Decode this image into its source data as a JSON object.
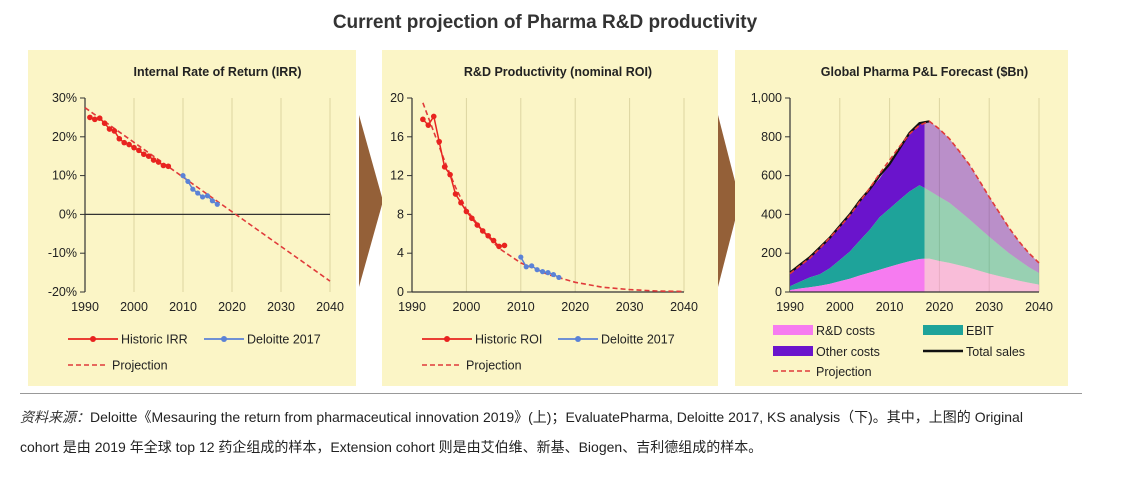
{
  "title": "Current projection of Pharma R&D productivity",
  "colors": {
    "panel_bg": "#fbf5c6",
    "historic": "#e8231f",
    "deloitte": "#5b82d6",
    "projection": "#e03a3a",
    "rd": "#f67bf0",
    "ebit": "#1ea39a",
    "other": "#6a14cc",
    "total": "#111111",
    "arrow": "#946038"
  },
  "chart_data": [
    {
      "type": "line",
      "title": "Internal Rate of Return (IRR)",
      "xlim": [
        1990,
        2040
      ],
      "ylim": [
        -20,
        30
      ],
      "x_ticks": [
        "1990",
        "2000",
        "2010",
        "2020",
        "2030",
        "2040"
      ],
      "y_ticks": [
        "30%",
        "20%",
        "10%",
        "0%",
        "-10%",
        "-20%"
      ],
      "series": [
        {
          "name": "Historic IRR",
          "x": [
            1991,
            1992,
            1993,
            1994,
            1995,
            1996,
            1997,
            1998,
            1999,
            2000,
            2001,
            2002,
            2003,
            2004,
            2005,
            2006,
            2007
          ],
          "y": [
            25,
            24.5,
            24.8,
            23.5,
            22,
            21.5,
            19.5,
            18.5,
            18,
            17.2,
            16.5,
            15.5,
            15,
            14,
            13.5,
            12.6,
            12.4
          ]
        },
        {
          "name": "Deloitte 2017",
          "x": [
            2010,
            2011,
            2012,
            2013,
            2014,
            2015,
            2016,
            2017
          ],
          "y": [
            10,
            8.5,
            6.5,
            5.5,
            4.5,
            4.8,
            3.5,
            2.6
          ]
        },
        {
          "name": "Projection",
          "x": [
            1990,
            2040
          ],
          "y": [
            27.5,
            -17.2
          ]
        }
      ]
    },
    {
      "type": "line",
      "title": "R&D Productivity (nominal ROI)",
      "xlim": [
        1990,
        2040
      ],
      "ylim": [
        0,
        20
      ],
      "x_ticks": [
        "1990",
        "2000",
        "2010",
        "2020",
        "2030",
        "2040"
      ],
      "y_ticks": [
        "20",
        "16",
        "12",
        "8",
        "4",
        "0"
      ],
      "series": [
        {
          "name": "Historic ROI",
          "x": [
            1992,
            1993,
            1994,
            1995,
            1996,
            1997,
            1998,
            1999,
            2000,
            2001,
            2002,
            2003,
            2004,
            2005,
            2006,
            2007
          ],
          "y": [
            17.8,
            17.2,
            18.1,
            15.5,
            12.9,
            12.1,
            10.1,
            9.2,
            8.3,
            7.6,
            6.9,
            6.3,
            5.8,
            5.3,
            4.7,
            4.8
          ]
        },
        {
          "name": "Deloitte 2017",
          "x": [
            2010,
            2011,
            2012,
            2013,
            2014,
            2015,
            2016,
            2017
          ],
          "y": [
            3.6,
            2.6,
            2.7,
            2.3,
            2.1,
            2.0,
            1.8,
            1.5
          ]
        },
        {
          "name": "Projection",
          "x": [
            1992,
            1994,
            1996,
            1998,
            2000,
            2003,
            2006,
            2010,
            2015,
            2020,
            2025,
            2030,
            2035,
            2040
          ],
          "y": [
            19.5,
            16.5,
            13.5,
            10.8,
            8.5,
            6.3,
            4.5,
            3.0,
            1.8,
            1.0,
            0.5,
            0.25,
            0.1,
            0.05
          ]
        }
      ]
    },
    {
      "type": "area",
      "title": "Global Pharma P&L Forecast ($Bn)",
      "xlim": [
        1990,
        2040
      ],
      "ylim": [
        0,
        1000
      ],
      "x_ticks": [
        "1990",
        "2000",
        "2010",
        "2020",
        "2030",
        "2040"
      ],
      "y_ticks": [
        "1,000",
        "800",
        "600",
        "400",
        "200",
        "0"
      ],
      "x": [
        1990,
        1992,
        1994,
        1996,
        1998,
        2000,
        2002,
        2004,
        2006,
        2008,
        2010,
        2012,
        2014,
        2016,
        2018,
        2020,
        2022,
        2024,
        2026,
        2028,
        2030,
        2032,
        2034,
        2036,
        2038,
        2040
      ],
      "series": [
        {
          "name": "R&D costs",
          "values": [
            10,
            18,
            25,
            32,
            42,
            55,
            68,
            85,
            100,
            115,
            130,
            145,
            158,
            170,
            172,
            160,
            150,
            138,
            125,
            110,
            95,
            82,
            70,
            58,
            48,
            38
          ]
        },
        {
          "name": "EBIT",
          "values": [
            20,
            35,
            50,
            60,
            80,
            110,
            140,
            180,
            220,
            270,
            300,
            330,
            360,
            380,
            350,
            330,
            310,
            280,
            250,
            220,
            190,
            160,
            130,
            105,
            80,
            60
          ]
        },
        {
          "name": "Other costs",
          "values": [
            70,
            90,
            110,
            140,
            160,
            175,
            190,
            205,
            210,
            200,
            230,
            260,
            300,
            320,
            358,
            350,
            330,
            307,
            282,
            245,
            205,
            168,
            130,
            97,
            72,
            52
          ]
        },
        {
          "name": "Total sales",
          "values": [
            100,
            140,
            180,
            230,
            280,
            340,
            400,
            470,
            530,
            600,
            660,
            740,
            820,
            870,
            880,
            840,
            790,
            725,
            657,
            575,
            490,
            410,
            330,
            260,
            200,
            150
          ]
        },
        {
          "name": "Projection",
          "values": [
            95,
            135,
            175,
            225,
            280,
            335,
            395,
            465,
            535,
            610,
            680,
            750,
            815,
            860,
            880,
            840,
            790,
            725,
            657,
            575,
            490,
            410,
            330,
            260,
            200,
            150
          ]
        }
      ],
      "forecast_start": 2017
    }
  ],
  "source_note": {
    "label": "资料来源：",
    "text1": "Deloitte《Mesauring the return from pharmaceutical innovation 2019》(上)；EvaluatePharma, Deloitte 2017, KS analysis（下)。其中，上图的 Original",
    "text2": "cohort 是由 2019 年全球 top 12 药企组成的样本，Extension cohort 则是由艾伯维、新基、Biogen、吉利德组成的样本。"
  }
}
